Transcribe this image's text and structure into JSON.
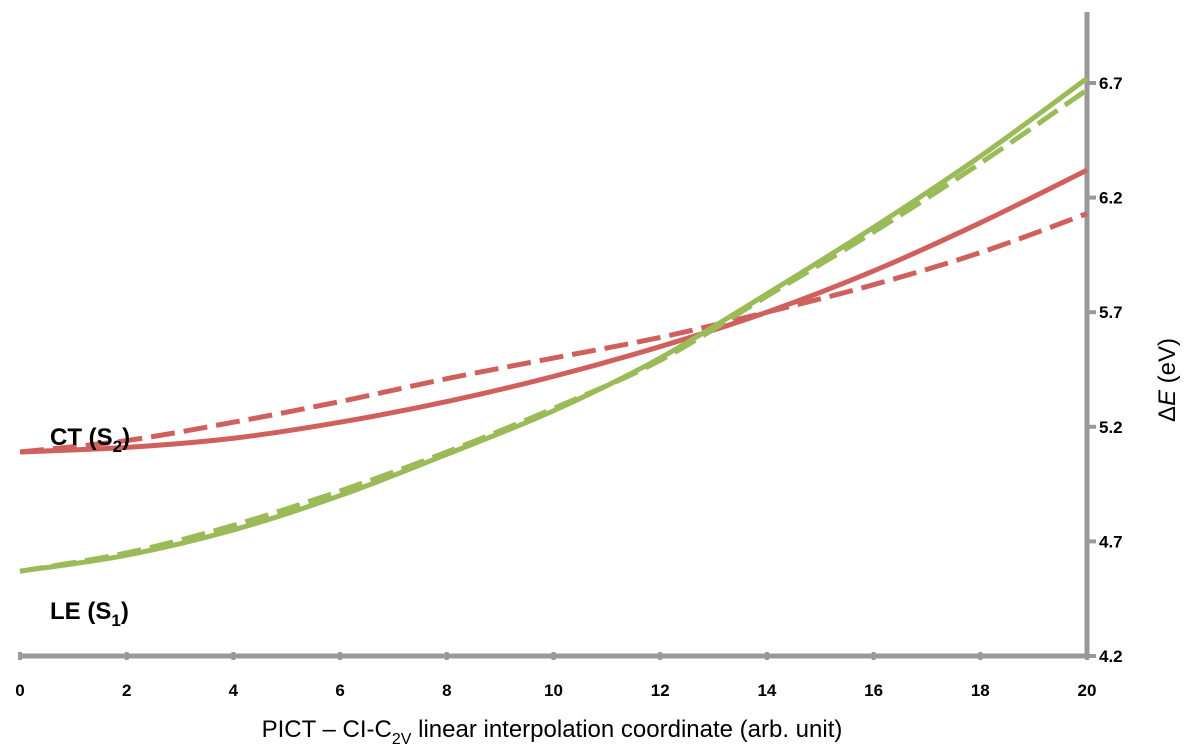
{
  "chart_data": {
    "type": "line",
    "xlabel": {
      "prefix": "PICT – CI-C",
      "sub": "2V",
      "suffix": " linear interpolation coordinate (arb. unit)"
    },
    "ylabel": {
      "symbol": "Δ",
      "var": "E",
      "unit": " (eV)"
    },
    "xlim": [
      0,
      20
    ],
    "ylim": [
      4.2,
      7.0
    ],
    "x_ticks": [
      "0",
      "2",
      "4",
      "6",
      "8",
      "10",
      "12",
      "14",
      "16",
      "18",
      "20"
    ],
    "y_ticks": [
      "4.2",
      "4.7",
      "5.2",
      "5.7",
      "6.2",
      "6.7"
    ],
    "y_axis_side": "right",
    "grid": false,
    "series_labels": [
      {
        "main": "CT (S",
        "sub": "2",
        "close": ")",
        "color": "#d0605e"
      },
      {
        "main": "LE (S",
        "sub": "1",
        "close": ")",
        "color": "#9bbb59"
      }
    ],
    "series": [
      {
        "state": "CT",
        "style": "solid",
        "color": "#d0605e",
        "x": [
          0,
          2,
          4,
          6,
          8,
          10,
          12,
          14,
          16,
          18,
          20
        ],
        "y": [
          5.09,
          5.11,
          5.15,
          5.22,
          5.31,
          5.42,
          5.55,
          5.7,
          5.88,
          6.09,
          6.32
        ]
      },
      {
        "state": "CT",
        "style": "dashed",
        "color": "#d0605e",
        "x": [
          0,
          2,
          4,
          6,
          8,
          10,
          12,
          14,
          16,
          18,
          20
        ],
        "y": [
          5.09,
          5.14,
          5.22,
          5.31,
          5.41,
          5.5,
          5.59,
          5.7,
          5.82,
          5.96,
          6.13
        ]
      },
      {
        "state": "LE",
        "style": "solid",
        "color": "#9bbb59",
        "x": [
          0,
          2,
          4,
          6,
          8,
          10,
          12,
          14,
          16,
          18,
          20
        ],
        "y": [
          4.57,
          4.64,
          4.75,
          4.9,
          5.08,
          5.27,
          5.5,
          5.78,
          6.07,
          6.38,
          6.72
        ]
      },
      {
        "state": "LE",
        "style": "dashed",
        "color": "#9bbb59",
        "x": [
          0,
          2,
          4,
          6,
          8,
          10,
          12,
          14,
          16,
          18,
          20
        ],
        "y": [
          4.57,
          4.65,
          4.77,
          4.92,
          5.09,
          5.28,
          5.49,
          5.77,
          6.05,
          6.35,
          6.67
        ]
      }
    ]
  }
}
